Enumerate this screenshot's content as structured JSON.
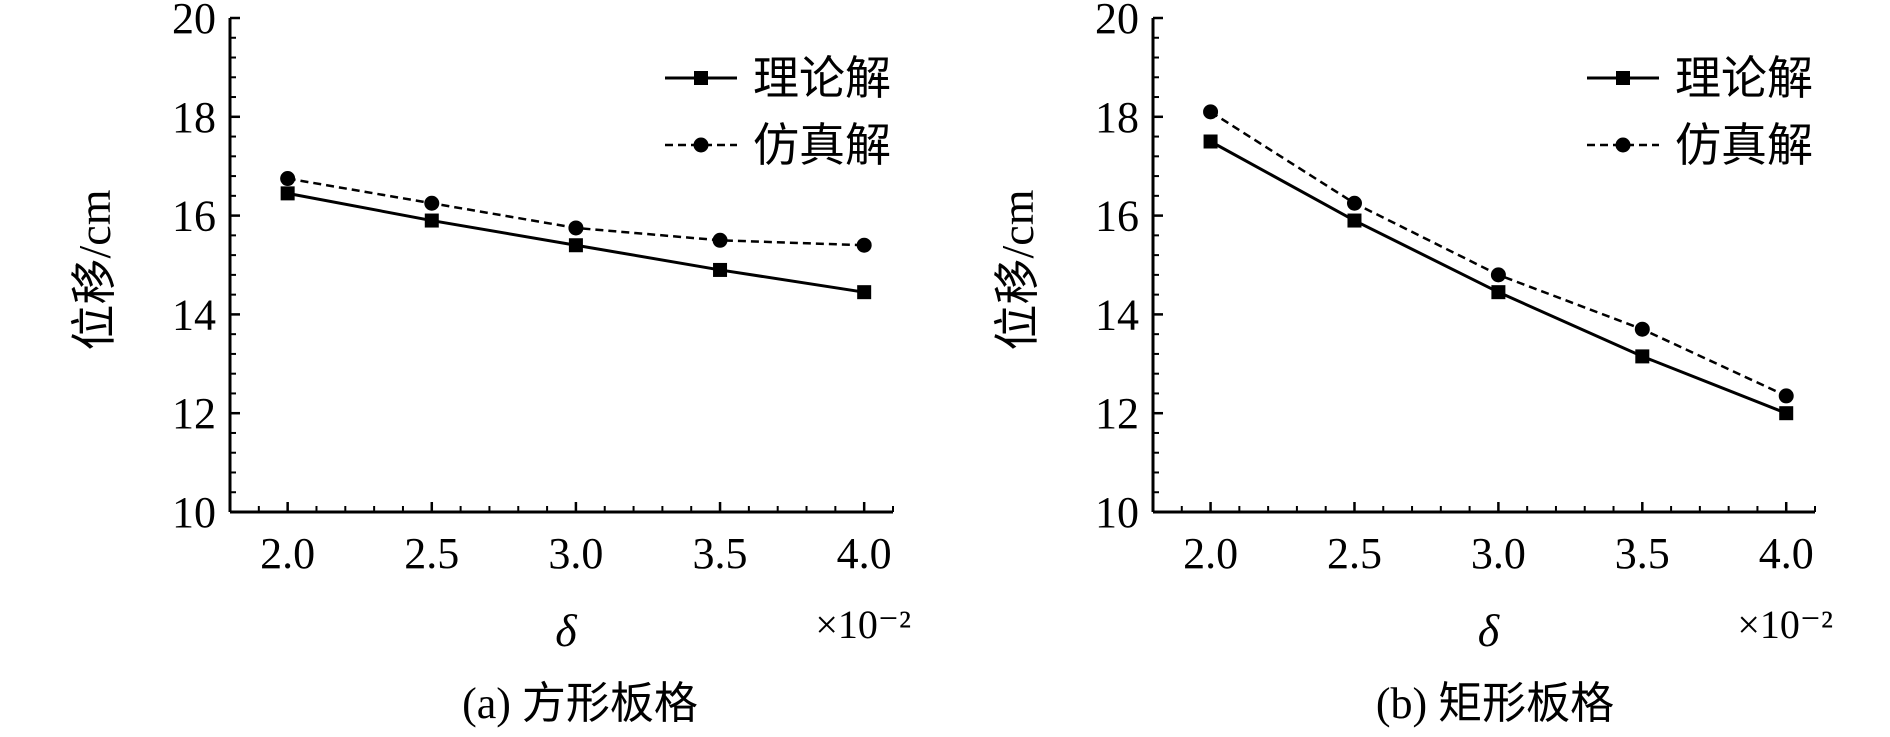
{
  "chart_data": [
    {
      "type": "line",
      "caption": "(a) 方形板格",
      "xlabel": "δ",
      "x_multiplier": "×10⁻²",
      "ylabel": "位移/cm",
      "x": [
        2.0,
        2.5,
        3.0,
        3.5,
        4.0
      ],
      "xticks": [
        "2.0",
        "2.5",
        "3.0",
        "3.5",
        "4.0"
      ],
      "yticks": [
        "10",
        "12",
        "14",
        "16",
        "18",
        "20"
      ],
      "xlim": [
        1.8,
        4.1
      ],
      "ylim": [
        10,
        20
      ],
      "legend_position": "top-right",
      "series": [
        {
          "name": "理论解",
          "style": "solid",
          "marker": "square",
          "values": [
            16.45,
            15.9,
            15.4,
            14.9,
            14.45
          ]
        },
        {
          "name": "仿真解",
          "style": "dashed",
          "marker": "circle",
          "values": [
            16.75,
            16.25,
            15.75,
            15.5,
            15.4
          ]
        }
      ]
    },
    {
      "type": "line",
      "caption": "(b) 矩形板格",
      "xlabel": "δ",
      "x_multiplier": "×10⁻²",
      "ylabel": "位移/cm",
      "x": [
        2.0,
        2.5,
        3.0,
        3.5,
        4.0
      ],
      "xticks": [
        "2.0",
        "2.5",
        "3.0",
        "3.5",
        "4.0"
      ],
      "yticks": [
        "10",
        "12",
        "14",
        "16",
        "18",
        "20"
      ],
      "xlim": [
        1.8,
        4.1
      ],
      "ylim": [
        10,
        20
      ],
      "legend_position": "top-right",
      "series": [
        {
          "name": "理论解",
          "style": "solid",
          "marker": "square",
          "values": [
            17.5,
            15.9,
            14.45,
            13.15,
            12.0
          ]
        },
        {
          "name": "仿真解",
          "style": "dashed",
          "marker": "circle",
          "values": [
            18.1,
            16.25,
            14.8,
            13.7,
            12.35
          ]
        }
      ]
    }
  ]
}
